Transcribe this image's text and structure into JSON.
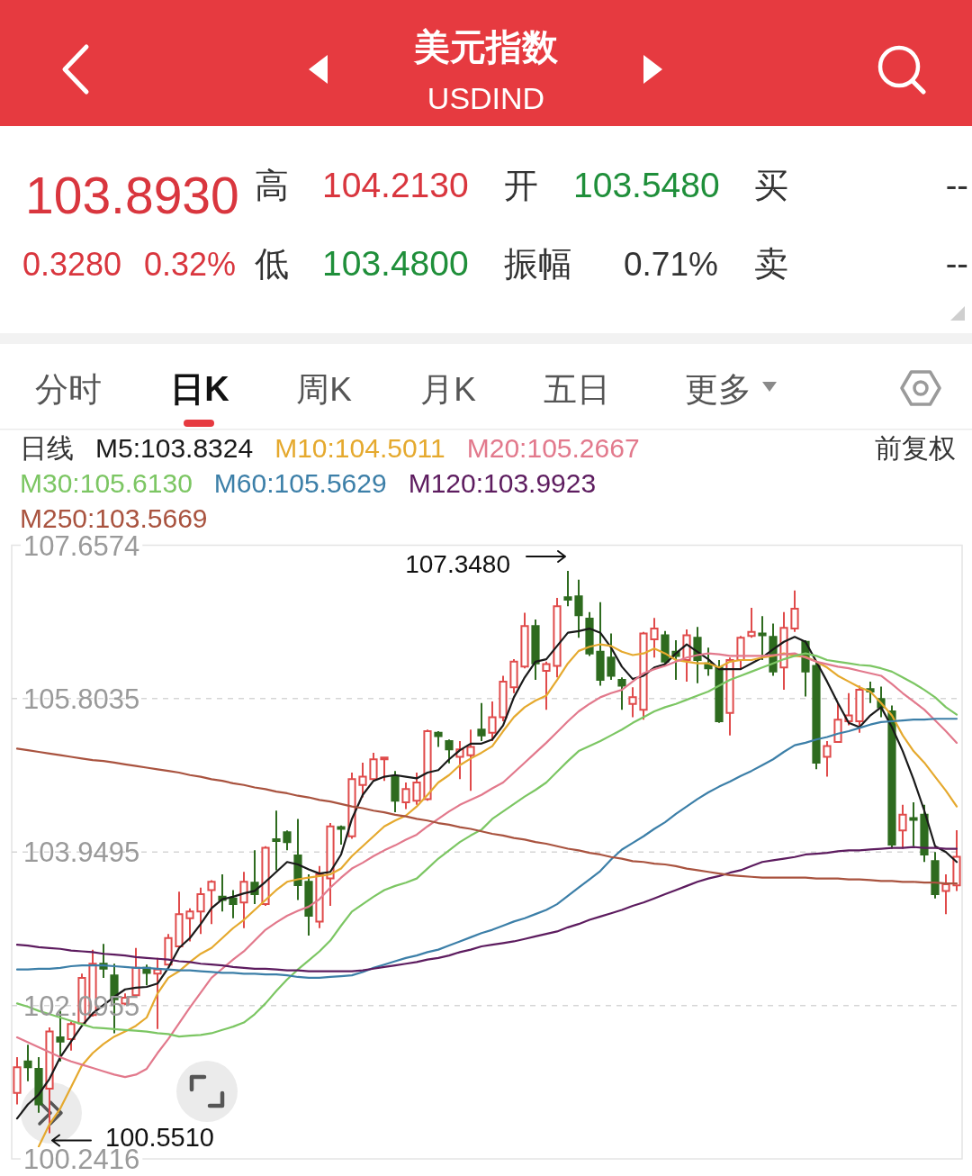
{
  "chart_data": {
    "type": "candlestick",
    "title": "美元指数",
    "subtitle": "USDIND",
    "legend_title": "日线",
    "legend": "top left",
    "grid": "y",
    "tick_labels": "y",
    "ylim": [
      100.2416,
      107.6574
    ],
    "yticks": [
      107.6574,
      105.8035,
      103.9495,
      102.0955,
      100.2416
    ],
    "categories": [
      null,
      null,
      null,
      null,
      null,
      null,
      null,
      null,
      null,
      null,
      null,
      null,
      null,
      null,
      null,
      null,
      null,
      null,
      null,
      null,
      null,
      null,
      null,
      null,
      null,
      null,
      null,
      null,
      null,
      null,
      null,
      null,
      null,
      null,
      null,
      null,
      null,
      null,
      null,
      null,
      null,
      null,
      null,
      null,
      null,
      null,
      null,
      null,
      null,
      null,
      null,
      null,
      null,
      null,
      null,
      null,
      null,
      null,
      null,
      null,
      null,
      null,
      null,
      null,
      null,
      null,
      null,
      null,
      null,
      null,
      null,
      null,
      null,
      null,
      null,
      null,
      null,
      null,
      null,
      null,
      null,
      null,
      null,
      null,
      null,
      null,
      null,
      null
    ],
    "ohlc": [
      [
        101.04,
        101.47,
        100.9,
        101.35
      ],
      [
        101.42,
        101.62,
        101.18,
        101.35
      ],
      [
        101.33,
        101.47,
        100.8,
        100.9
      ],
      [
        101.09,
        101.83,
        100.551,
        101.78
      ],
      [
        101.71,
        102.03,
        101.42,
        101.66
      ],
      [
        101.69,
        101.9,
        101.55,
        101.87
      ],
      [
        101.88,
        102.48,
        101.86,
        102.43
      ],
      [
        101.98,
        102.77,
        101.96,
        102.6
      ],
      [
        102.6,
        102.84,
        102.43,
        102.54
      ],
      [
        102.46,
        102.6,
        101.76,
        102.17
      ],
      [
        102.12,
        102.24,
        102.1,
        102.19
      ],
      [
        102.22,
        102.79,
        102.19,
        102.55
      ],
      [
        102.55,
        102.59,
        102.34,
        102.49
      ],
      [
        102.48,
        102.67,
        101.81,
        102.53
      ],
      [
        102.59,
        102.96,
        102.58,
        102.91
      ],
      [
        102.81,
        103.47,
        102.79,
        103.2
      ],
      [
        103.15,
        103.27,
        102.87,
        103.23
      ],
      [
        103.23,
        103.52,
        102.96,
        103.44
      ],
      [
        103.49,
        103.61,
        103.08,
        103.59
      ],
      [
        103.41,
        103.68,
        103.23,
        103.37
      ],
      [
        103.39,
        103.49,
        103.15,
        103.32
      ],
      [
        103.34,
        103.71,
        103.03,
        103.59
      ],
      [
        103.58,
        103.97,
        103.32,
        103.44
      ],
      [
        103.32,
        104.02,
        103.3,
        104.0
      ],
      [
        104.1,
        104.45,
        103.73,
        104.09
      ],
      [
        104.19,
        104.21,
        103.97,
        104.07
      ],
      [
        103.91,
        104.35,
        103.37,
        103.55
      ],
      [
        103.59,
        103.68,
        102.94,
        103.18
      ],
      [
        103.11,
        103.78,
        103.03,
        103.68
      ],
      [
        103.63,
        104.3,
        103.3,
        104.26
      ],
      [
        104.25,
        104.27,
        104.04,
        104.23
      ],
      [
        104.14,
        104.91,
        104.11,
        104.83
      ],
      [
        104.76,
        105.03,
        104.61,
        104.86
      ],
      [
        104.83,
        105.15,
        104.81,
        105.07
      ],
      [
        105.07,
        105.1,
        104.81,
        105.09
      ],
      [
        104.86,
        104.93,
        104.43,
        104.57
      ],
      [
        104.55,
        104.79,
        104.47,
        104.71
      ],
      [
        104.57,
        104.91,
        104.52,
        104.79
      ],
      [
        104.59,
        105.43,
        104.57,
        105.41
      ],
      [
        105.39,
        105.41,
        105.22,
        105.35
      ],
      [
        105.29,
        105.31,
        105.02,
        105.19
      ],
      [
        105.1,
        105.29,
        104.83,
        105.19
      ],
      [
        105.12,
        105.43,
        104.69,
        105.22
      ],
      [
        105.43,
        105.75,
        105.29,
        105.36
      ],
      [
        105.39,
        105.77,
        105.29,
        105.58
      ],
      [
        105.58,
        106.08,
        105.53,
        106.01
      ],
      [
        105.94,
        106.28,
        105.87,
        106.25
      ],
      [
        106.19,
        106.84,
        106.17,
        106.68
      ],
      [
        106.68,
        106.76,
        106.03,
        106.23
      ],
      [
        106.14,
        106.25,
        105.67,
        106.22
      ],
      [
        106.2,
        107.02,
        106.06,
        106.92
      ],
      [
        107.03,
        107.348,
        106.92,
        107.0
      ],
      [
        107.04,
        107.24,
        106.54,
        106.81
      ],
      [
        106.77,
        106.85,
        106.32,
        106.35
      ],
      [
        106.37,
        106.97,
        105.96,
        106.03
      ],
      [
        106.3,
        106.59,
        106.03,
        106.08
      ],
      [
        106.03,
        106.06,
        105.67,
        105.96
      ],
      [
        105.74,
        105.94,
        105.58,
        105.82
      ],
      [
        105.67,
        106.61,
        105.55,
        106.59
      ],
      [
        106.52,
        106.78,
        106.3,
        106.65
      ],
      [
        106.57,
        106.62,
        106.2,
        106.25
      ],
      [
        106.37,
        106.51,
        106.03,
        106.32
      ],
      [
        106.27,
        106.64,
        106.01,
        106.57
      ],
      [
        106.54,
        106.67,
        105.99,
        106.27
      ],
      [
        106.23,
        106.42,
        106.08,
        106.17
      ],
      [
        106.18,
        106.27,
        105.51,
        105.53
      ],
      [
        105.63,
        106.3,
        105.36,
        106.27
      ],
      [
        106.27,
        106.56,
        106.15,
        106.54
      ],
      [
        106.56,
        106.9,
        106.54,
        106.61
      ],
      [
        106.59,
        106.8,
        106.27,
        106.57
      ],
      [
        106.55,
        106.71,
        106.08,
        106.13
      ],
      [
        106.18,
        106.85,
        105.91,
        106.66
      ],
      [
        106.65,
        107.11,
        106.61,
        106.89
      ],
      [
        106.49,
        106.51,
        105.83,
        106.13
      ],
      [
        106.2,
        106.25,
        104.95,
        105.03
      ],
      [
        105.1,
        105.29,
        104.86,
        105.23
      ],
      [
        105.28,
        105.75,
        105.27,
        105.55
      ],
      [
        105.53,
        105.87,
        105.48,
        105.6
      ],
      [
        105.53,
        105.96,
        105.39,
        105.91
      ],
      [
        105.92,
        106.01,
        105.75,
        105.89
      ],
      [
        105.8,
        105.95,
        105.58,
        105.7
      ],
      [
        105.65,
        105.72,
        103.99,
        104.04
      ],
      [
        104.21,
        104.52,
        103.99,
        104.4
      ],
      [
        104.36,
        104.55,
        104.02,
        104.34
      ],
      [
        104.4,
        104.52,
        103.83,
        103.92
      ],
      [
        103.84,
        103.95,
        103.39,
        103.44
      ],
      [
        103.48,
        103.68,
        103.2,
        103.56
      ],
      [
        103.548,
        104.213,
        103.48,
        103.893
      ]
    ],
    "colors": [
      "#e04b4b",
      "#2e6b1f",
      "#2e6b1f",
      "#e04b4b",
      "#2e6b1f",
      "#e04b4b",
      "#e04b4b",
      "#e04b4b",
      "#2e6b1f",
      "#2e6b1f",
      "#e04b4b",
      "#e04b4b",
      "#2e6b1f",
      "#e04b4b",
      "#e04b4b",
      "#e04b4b",
      "#e04b4b",
      "#e04b4b",
      "#e04b4b",
      "#2e6b1f",
      "#2e6b1f",
      "#e04b4b",
      "#2e6b1f",
      "#e04b4b",
      "#2e6b1f",
      "#2e6b1f",
      "#2e6b1f",
      "#2e6b1f",
      "#e04b4b",
      "#e04b4b",
      "#2e6b1f",
      "#e04b4b",
      "#e04b4b",
      "#e04b4b",
      "#e04b4b",
      "#2e6b1f",
      "#e04b4b",
      "#e04b4b",
      "#e04b4b",
      "#2e6b1f",
      "#2e6b1f",
      "#e04b4b",
      "#e04b4b",
      "#2e6b1f",
      "#e04b4b",
      "#e04b4b",
      "#e04b4b",
      "#e04b4b",
      "#2e6b1f",
      "#e04b4b",
      "#e04b4b",
      "#2e6b1f",
      "#2e6b1f",
      "#2e6b1f",
      "#2e6b1f",
      "#2e6b1f",
      "#2e6b1f",
      "#e04b4b",
      "#e04b4b",
      "#e04b4b",
      "#2e6b1f",
      "#2e6b1f",
      "#e04b4b",
      "#2e6b1f",
      "#2e6b1f",
      "#2e6b1f",
      "#e04b4b",
      "#e04b4b",
      "#e04b4b",
      "#2e6b1f",
      "#2e6b1f",
      "#e04b4b",
      "#e04b4b",
      "#2e6b1f",
      "#2e6b1f",
      "#e04b4b",
      "#e04b4b",
      "#e04b4b",
      "#e04b4b",
      "#2e6b1f",
      "#2e6b1f",
      "#2e6b1f",
      "#e04b4b",
      "#2e6b1f",
      "#2e6b1f",
      "#2e6b1f",
      "#e04b4b",
      "#e04b4b"
    ],
    "series": [
      {
        "name": "M5:103.8324",
        "type": "line",
        "color": "#1a1a1a",
        "values": [
          100.73,
          100.9,
          101.02,
          101.21,
          101.47,
          101.66,
          101.85,
          102.0,
          102.1,
          102.2,
          102.29,
          102.31,
          102.32,
          102.36,
          102.55,
          102.79,
          102.91,
          103.08,
          103.27,
          103.38,
          103.41,
          103.45,
          103.48,
          103.59,
          103.71,
          103.83,
          103.8,
          103.74,
          103.69,
          103.71,
          103.92,
          104.35,
          104.64,
          104.81,
          104.86,
          104.88,
          104.86,
          104.84,
          104.91,
          104.94,
          105.07,
          105.18,
          105.26,
          105.26,
          105.31,
          105.48,
          105.82,
          106.06,
          106.25,
          106.28,
          106.44,
          106.6,
          106.62,
          106.65,
          106.6,
          106.42,
          106.19,
          106.04,
          106.08,
          106.18,
          106.22,
          106.35,
          106.46,
          106.37,
          106.28,
          106.16,
          106.16,
          106.16,
          106.23,
          106.3,
          106.4,
          106.49,
          106.55,
          106.49,
          106.25,
          106.01,
          105.75,
          105.51,
          105.46,
          105.6,
          105.7,
          105.46,
          105.17,
          104.83,
          104.45,
          104.02,
          103.95,
          103.83
        ]
      },
      {
        "name": "M10:104.5011",
        "type": "line",
        "color": "#e5a92e",
        "values": [
          null,
          null,
          100.39,
          100.66,
          100.85,
          101.11,
          101.37,
          101.52,
          101.63,
          101.72,
          101.78,
          101.85,
          101.95,
          102.24,
          102.43,
          102.51,
          102.62,
          102.72,
          102.79,
          102.91,
          103.03,
          103.13,
          103.25,
          103.37,
          103.49,
          103.59,
          103.62,
          103.64,
          103.66,
          103.68,
          103.75,
          103.9,
          104.02,
          104.14,
          104.26,
          104.33,
          104.39,
          104.5,
          104.64,
          104.79,
          104.88,
          105.0,
          105.08,
          105.15,
          105.23,
          105.41,
          105.58,
          105.7,
          105.78,
          105.84,
          106.03,
          106.23,
          106.38,
          106.43,
          106.46,
          106.44,
          106.37,
          106.33,
          106.35,
          106.41,
          106.35,
          106.27,
          106.25,
          106.23,
          106.23,
          106.18,
          106.25,
          106.27,
          106.27,
          106.3,
          106.32,
          106.35,
          106.32,
          106.31,
          106.25,
          106.18,
          106.08,
          106.01,
          105.94,
          105.89,
          105.75,
          105.6,
          105.36,
          105.17,
          105.03,
          104.86,
          104.69,
          104.5
        ]
      },
      {
        "name": "M20:105.2667",
        "type": "line",
        "color": "#e2798c",
        "values": [
          101.71,
          101.65,
          101.59,
          101.53,
          101.47,
          101.42,
          101.38,
          101.34,
          101.3,
          101.26,
          101.23,
          101.26,
          101.33,
          101.52,
          101.69,
          101.88,
          102.07,
          102.25,
          102.43,
          102.54,
          102.65,
          102.75,
          102.88,
          103.01,
          103.1,
          103.18,
          103.24,
          103.29,
          103.38,
          103.52,
          103.64,
          103.75,
          103.82,
          103.9,
          103.97,
          104.03,
          104.1,
          104.16,
          104.26,
          104.35,
          104.44,
          104.52,
          104.58,
          104.64,
          104.72,
          104.79,
          104.91,
          105.03,
          105.15,
          105.27,
          105.4,
          105.53,
          105.65,
          105.74,
          105.82,
          105.87,
          105.91,
          106.01,
          106.11,
          106.16,
          106.2,
          106.25,
          106.3,
          106.33,
          106.35,
          106.34,
          106.32,
          106.32,
          106.32,
          106.32,
          106.33,
          106.34,
          106.35,
          106.3,
          106.25,
          106.22,
          106.19,
          106.17,
          106.14,
          106.11,
          106.08,
          105.98,
          105.87,
          105.77,
          105.67,
          105.54,
          105.41,
          105.27
        ]
      },
      {
        "name": "M30:105.6130",
        "type": "line",
        "color": "#7cc663",
        "values": [
          102.12,
          102.08,
          102.03,
          101.99,
          101.95,
          101.91,
          101.87,
          101.83,
          101.82,
          101.81,
          101.8,
          101.79,
          101.78,
          101.76,
          101.75,
          101.72,
          101.73,
          101.74,
          101.76,
          101.8,
          101.84,
          101.89,
          101.99,
          102.12,
          102.27,
          102.41,
          102.53,
          102.64,
          102.75,
          102.88,
          103.06,
          103.23,
          103.32,
          103.41,
          103.49,
          103.54,
          103.58,
          103.63,
          103.75,
          103.87,
          103.97,
          104.07,
          104.15,
          104.22,
          104.35,
          104.44,
          104.53,
          104.62,
          104.7,
          104.79,
          104.92,
          105.05,
          105.17,
          105.23,
          105.29,
          105.36,
          105.43,
          105.51,
          105.58,
          105.65,
          105.7,
          105.74,
          105.79,
          105.84,
          105.89,
          105.96,
          106.03,
          106.08,
          106.13,
          106.18,
          106.23,
          106.28,
          106.32,
          106.35,
          106.32,
          106.27,
          106.25,
          106.23,
          106.21,
          106.2,
          106.17,
          106.13,
          106.06,
          105.99,
          105.91,
          105.82,
          105.7,
          105.61
        ]
      },
      {
        "name": "M60:105.5629",
        "type": "line",
        "color": "#3c7fa8",
        "values": [
          102.53,
          102.53,
          102.54,
          102.54,
          102.55,
          102.57,
          102.58,
          102.58,
          102.58,
          102.57,
          102.56,
          102.55,
          102.55,
          102.54,
          102.53,
          102.52,
          102.52,
          102.51,
          102.5,
          102.49,
          102.49,
          102.48,
          102.48,
          102.47,
          102.47,
          102.46,
          102.44,
          102.43,
          102.43,
          102.44,
          102.45,
          102.46,
          102.5,
          102.55,
          102.59,
          102.63,
          102.67,
          102.7,
          102.74,
          102.77,
          102.82,
          102.87,
          102.92,
          102.97,
          103.01,
          103.06,
          103.11,
          103.15,
          103.2,
          103.25,
          103.32,
          103.42,
          103.52,
          103.62,
          103.72,
          103.86,
          103.98,
          104.06,
          104.14,
          104.23,
          104.31,
          104.41,
          104.5,
          104.59,
          104.67,
          104.74,
          104.8,
          104.87,
          104.93,
          105.0,
          105.07,
          105.16,
          105.24,
          105.27,
          105.31,
          105.34,
          105.38,
          105.41,
          105.45,
          105.49,
          105.52,
          105.53,
          105.54,
          105.55,
          105.55,
          105.56,
          105.56,
          105.56
        ]
      },
      {
        "name": "M120:103.9923",
        "type": "line",
        "color": "#5d1c5f",
        "values": [
          102.83,
          102.82,
          102.8,
          102.79,
          102.78,
          102.76,
          102.75,
          102.74,
          102.72,
          102.71,
          102.7,
          102.68,
          102.67,
          102.66,
          102.65,
          102.63,
          102.62,
          102.6,
          102.59,
          102.58,
          102.56,
          102.55,
          102.54,
          102.54,
          102.53,
          102.52,
          102.52,
          102.51,
          102.51,
          102.51,
          102.51,
          102.51,
          102.52,
          102.54,
          102.56,
          102.58,
          102.6,
          102.62,
          102.65,
          102.67,
          102.7,
          102.74,
          102.77,
          102.81,
          102.83,
          102.85,
          102.87,
          102.9,
          102.93,
          102.96,
          102.99,
          103.04,
          103.08,
          103.13,
          103.17,
          103.21,
          103.25,
          103.3,
          103.34,
          103.39,
          103.44,
          103.49,
          103.54,
          103.59,
          103.63,
          103.66,
          103.7,
          103.73,
          103.78,
          103.83,
          103.85,
          103.87,
          103.89,
          103.92,
          103.93,
          103.94,
          103.96,
          103.97,
          103.97,
          103.98,
          103.99,
          104.0,
          104.0,
          104.01,
          104.0,
          104.0,
          103.99,
          103.99
        ]
      },
      {
        "name": "M250:103.5669",
        "type": "line",
        "color": "#a9533f",
        "values": [
          105.2,
          105.18,
          105.16,
          105.14,
          105.12,
          105.1,
          105.08,
          105.06,
          105.05,
          105.03,
          105.01,
          104.99,
          104.97,
          104.95,
          104.93,
          104.91,
          104.88,
          104.86,
          104.83,
          104.81,
          104.78,
          104.76,
          104.73,
          104.71,
          104.68,
          104.66,
          104.63,
          104.61,
          104.58,
          104.56,
          104.53,
          104.5,
          104.48,
          104.45,
          104.43,
          104.4,
          104.38,
          104.35,
          104.33,
          104.3,
          104.28,
          104.25,
          104.23,
          104.2,
          104.17,
          104.15,
          104.12,
          104.1,
          104.07,
          104.05,
          104.02,
          103.99,
          103.97,
          103.94,
          103.92,
          103.89,
          103.87,
          103.84,
          103.83,
          103.81,
          103.8,
          103.78,
          103.75,
          103.73,
          103.71,
          103.69,
          103.67,
          103.66,
          103.65,
          103.64,
          103.64,
          103.64,
          103.64,
          103.64,
          103.63,
          103.63,
          103.63,
          103.62,
          103.62,
          103.61,
          103.6,
          103.6,
          103.59,
          103.59,
          103.58,
          103.58,
          103.57,
          103.57
        ]
      }
    ],
    "annotations": [
      "103.8930",
      "高",
      "104.2130",
      "开",
      "103.5480",
      "买",
      "--",
      "0.3280",
      "0.32%",
      "低",
      "103.4800",
      "振幅",
      "0.71%",
      "卖",
      "--",
      "分时",
      "日K",
      "周K",
      "月K",
      "五日",
      "更多",
      "前复权",
      "107.3480",
      "100.5510"
    ]
  }
}
